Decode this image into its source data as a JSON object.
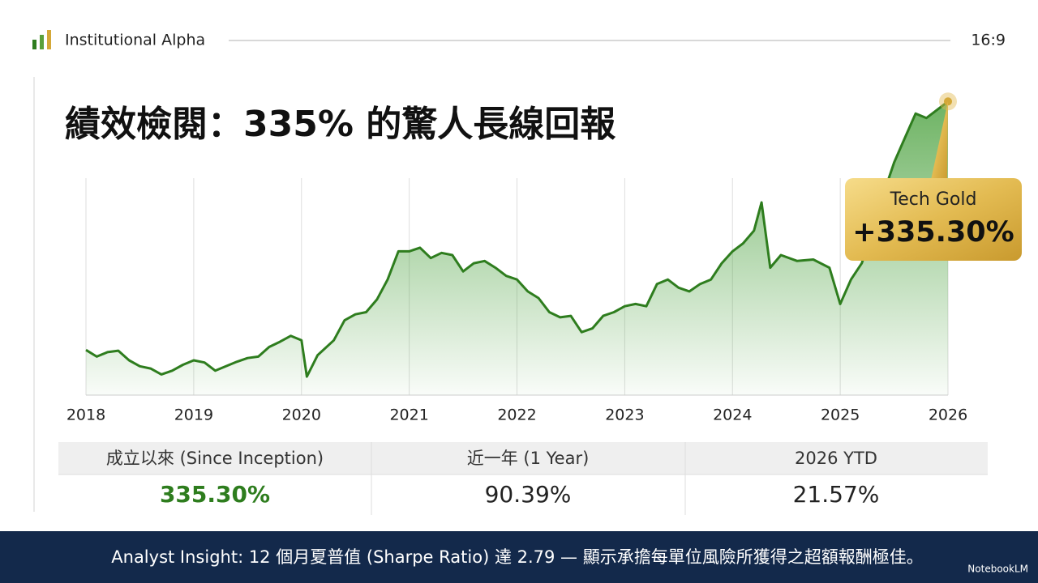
{
  "header": {
    "brand": "Institutional Alpha",
    "ratio": "16:9"
  },
  "chart_data": {
    "type": "line",
    "title": "績效檢閱：335% 的驚人長線回報",
    "x": [
      2018.0,
      2018.1,
      2018.2,
      2018.3,
      2018.4,
      2018.5,
      2018.6,
      2018.7,
      2018.8,
      2018.9,
      2019.0,
      2019.1,
      2019.2,
      2019.3,
      2019.4,
      2019.5,
      2019.6,
      2019.7,
      2019.8,
      2019.9,
      2020.0,
      2020.05,
      2020.15,
      2020.3,
      2020.4,
      2020.5,
      2020.6,
      2020.7,
      2020.8,
      2020.9,
      2021.0,
      2021.1,
      2021.2,
      2021.3,
      2021.4,
      2021.5,
      2021.6,
      2021.7,
      2021.8,
      2021.9,
      2022.0,
      2022.1,
      2022.2,
      2022.3,
      2022.4,
      2022.5,
      2022.6,
      2022.7,
      2022.8,
      2022.9,
      2023.0,
      2023.1,
      2023.2,
      2023.3,
      2023.4,
      2023.5,
      2023.6,
      2023.7,
      2023.8,
      2023.9,
      2024.0,
      2024.1,
      2024.2,
      2024.27,
      2024.35,
      2024.45,
      2024.6,
      2024.75,
      2024.9,
      2025.0,
      2025.1,
      2025.2,
      2025.3,
      2025.4,
      2025.5,
      2025.6,
      2025.7,
      2025.8,
      2025.9,
      2026.0
    ],
    "series": [
      {
        "name": "Tech Gold",
        "color": "#2e7d1e",
        "values": [
          0,
          -9,
          -3,
          -1,
          -14,
          -22,
          -25,
          -33,
          -28,
          -20,
          -14,
          -17,
          -28,
          -22,
          -16,
          -11,
          -9,
          4,
          11,
          19,
          13,
          -36,
          -7,
          13,
          40,
          48,
          51,
          68,
          95,
          133,
          133,
          138,
          124,
          131,
          128,
          106,
          117,
          120,
          111,
          100,
          95,
          79,
          70,
          51,
          44,
          46,
          24,
          29,
          46,
          51,
          59,
          62,
          59,
          89,
          95,
          84,
          79,
          89,
          95,
          117,
          133,
          144,
          161,
          199,
          111,
          128,
          120,
          122,
          111,
          62,
          95,
          117,
          161,
          210,
          253,
          286,
          319,
          313,
          324,
          335.3
        ]
      }
    ],
    "callout": "+335.30%",
    "xlim": [
      2018,
      2026
    ],
    "xticks": [
      2018,
      2019,
      2020,
      2021,
      2022,
      2023,
      2024,
      2025,
      2026
    ],
    "ylim": [
      -61,
      340
    ],
    "grid": true
  },
  "table": {
    "headers": [
      "成立以來 (Since Inception)",
      "近一年 (1 Year)",
      "2026 YTD"
    ],
    "values": [
      "335.30%",
      "90.39%",
      "21.57%"
    ]
  },
  "footer": {
    "insight": "Analyst Insight: 12 個月夏普值 (Sharpe Ratio) 達 2.79 — 顯示承擔每單位風險所獲得之超額報酬極佳。",
    "brand": "NotebookLM"
  }
}
